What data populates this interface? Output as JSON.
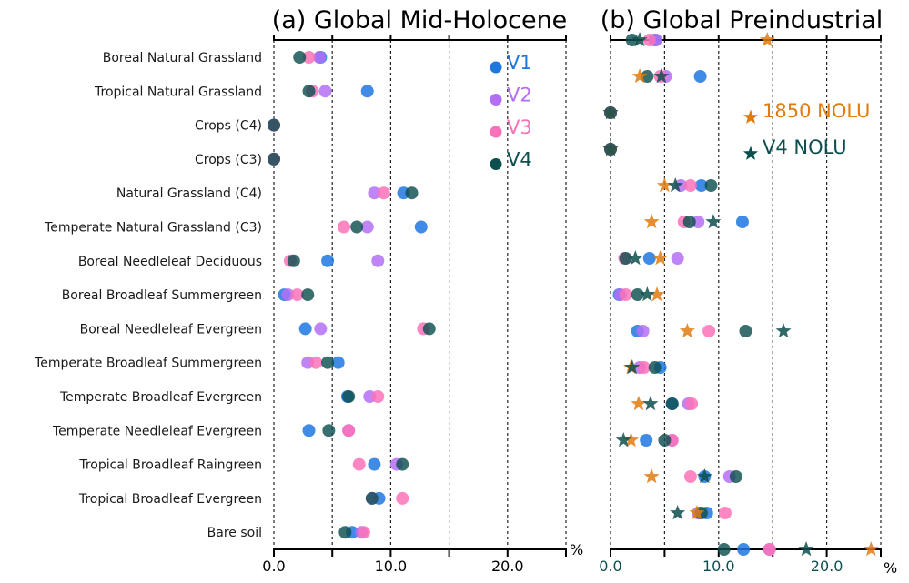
{
  "chart_data": [
    {
      "type": "scatter",
      "title": "(a) Global Mid-Holocene",
      "xlabel": "%",
      "xlim": [
        0,
        25
      ],
      "xticks": [
        0,
        10,
        20
      ],
      "xtick_labels": [
        "0.0",
        "10.0",
        "20.0"
      ],
      "grid": "vertical dashed every 5",
      "legend_placement": "top-right",
      "categories": [
        "Boreal Natural Grassland",
        "Tropical Natural Grassland",
        "Crops (C4)",
        "Crops (C3)",
        "Natural Grassland (C4)",
        "Temperate Natural Grassland (C3)",
        "Boreal Needleleaf Deciduous",
        "Boreal Broadleaf Summergreen",
        "Boreal Needleleaf Evergreen",
        "Temperate Broadleaf Summergreen",
        "Temperate Broadleaf Evergreen",
        "Temperate Needleleaf Evergreen",
        "Tropical Broadleaf Raingreen",
        "Tropical Broadleaf Evergreen",
        "Bare soil"
      ],
      "series": [
        {
          "name": "V1",
          "marker": "circle",
          "color": "#1f77e0",
          "values": [
            4.0,
            8.0,
            0,
            0,
            11.1,
            12.6,
            4.6,
            0.9,
            2.7,
            5.5,
            6.3,
            3.0,
            8.6,
            9.0,
            6.7
          ]
        },
        {
          "name": "V2",
          "marker": "circle",
          "color": "#b46ef5",
          "values": [
            3.9,
            4.4,
            0,
            0,
            8.6,
            8.0,
            8.9,
            1.2,
            4.0,
            2.9,
            8.2,
            6.4,
            10.5,
            8.4,
            7.5
          ]
        },
        {
          "name": "V3",
          "marker": "circle",
          "color": "#fb72b8",
          "values": [
            3.0,
            3.3,
            0,
            0,
            9.4,
            6.0,
            1.4,
            2.0,
            12.8,
            3.6,
            8.9,
            6.4,
            7.3,
            11.0,
            7.7
          ]
        },
        {
          "name": "V4",
          "marker": "circle",
          "color": "#0d4f4f",
          "values": [
            2.2,
            3.0,
            0,
            0,
            11.8,
            7.1,
            1.7,
            2.9,
            13.3,
            4.6,
            6.4,
            4.7,
            11.0,
            8.4,
            6.1
          ]
        }
      ]
    },
    {
      "type": "scatter",
      "title": "(b) Global Preindustrial",
      "xlabel": "%",
      "xlim": [
        0,
        25
      ],
      "xticks": [
        0,
        10,
        20
      ],
      "xtick_labels": [
        "0.0",
        "10.0",
        "20.0"
      ],
      "grid": "vertical dashed every 5",
      "legend_placement": "top-right",
      "categories": [
        "Boreal Natural Grassland",
        "Tropical Natural Grassland",
        "Crops (C4)",
        "Crops (C3)",
        "Natural Grassland (C4)",
        "Temperate Natural Grassland (C3)",
        "Boreal Needleleaf Deciduous",
        "Boreal Broadleaf Summergreen",
        "Boreal Needleleaf Evergreen",
        "Temperate Broadleaf Summergreen",
        "Temperate Broadleaf Evergreen",
        "Temperate Needleleaf Evergreen",
        "Tropical Broadleaf Raingreen",
        "Tropical Broadleaf Evergreen",
        "Bare soil"
      ],
      "series": [
        {
          "name": "V1",
          "marker": "circle",
          "color": "#1f77e0",
          "values": [
            4.1,
            8.3,
            0,
            0,
            8.4,
            12.2,
            3.6,
            0.8,
            2.5,
            4.6,
            5.7,
            3.3,
            8.7,
            8.9,
            12.3
          ]
        },
        {
          "name": "V2",
          "marker": "circle",
          "color": "#b46ef5",
          "values": [
            4.2,
            5.1,
            0,
            0,
            6.5,
            8.1,
            6.2,
            0.9,
            3.0,
            2.7,
            7.2,
            5.7,
            11.0,
            8.1,
            14.7
          ]
        },
        {
          "name": "V3",
          "marker": "circle",
          "color": "#fb72b8",
          "values": [
            3.6,
            4.6,
            0,
            0,
            7.4,
            6.8,
            1.3,
            1.4,
            9.1,
            3.1,
            7.5,
            5.7,
            7.4,
            10.6,
            14.7
          ]
        },
        {
          "name": "V4",
          "marker": "circle",
          "color": "#0d4f4f",
          "values": [
            2.0,
            3.4,
            0,
            0,
            9.3,
            7.3,
            1.4,
            2.5,
            12.5,
            4.1,
            5.7,
            5.0,
            11.6,
            8.4,
            10.5
          ]
        },
        {
          "name": "1850 NOLU",
          "marker": "star",
          "color": "#e07b10",
          "values": [
            14.5,
            2.7,
            0,
            0,
            5.0,
            3.8,
            4.6,
            4.3,
            7.1,
            1.9,
            2.6,
            1.9,
            3.8,
            8.0,
            24.1
          ]
        },
        {
          "name": "V4 NOLU",
          "marker": "star",
          "color": "#0d4f4f",
          "values": [
            2.7,
            4.7,
            0,
            0,
            6.0,
            9.5,
            2.3,
            3.4,
            16.0,
            2.0,
            3.7,
            1.2,
            8.7,
            6.2,
            18.1
          ]
        }
      ]
    }
  ],
  "legend_a": [
    "V1",
    "V2",
    "V3",
    "V4"
  ],
  "legend_b": [
    "1850 NOLU",
    "V4 NOLU"
  ],
  "unit_label": "%"
}
